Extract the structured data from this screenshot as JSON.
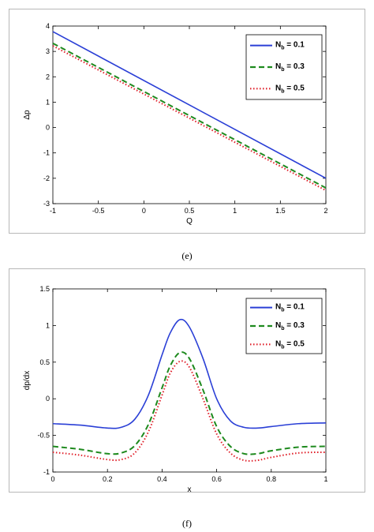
{
  "captions": {
    "e": "(e)",
    "f": "(f)"
  },
  "colors": {
    "blue": "#2a3fd6",
    "green": "#1e8a1e",
    "red": "#e0202a"
  },
  "chart_data": [
    {
      "id": "e",
      "type": "line",
      "xlabel": "Q",
      "ylabel": "Δp",
      "xlim": [
        -1,
        2
      ],
      "ylim": [
        -3,
        4
      ],
      "xticks": [
        -1,
        -0.5,
        0,
        0.5,
        1,
        1.5,
        2
      ],
      "xtick_labels": [
        "-1",
        "-0.5",
        "0",
        "0.5",
        "1",
        "1.5",
        "2"
      ],
      "yticks": [
        -3,
        -2,
        -1,
        0,
        1,
        2,
        3,
        4
      ],
      "ytick_labels": [
        "-3",
        "-2",
        "-1",
        "0",
        "1",
        "2",
        "3",
        "4"
      ],
      "grid": false,
      "legend_position": "top-right",
      "series": [
        {
          "name": "N",
          "sub": "b",
          "suffix": " = 0.1",
          "color": "#2a3fd6",
          "dash": "solid",
          "x": [
            -1,
            2
          ],
          "y": [
            3.78,
            -2.0
          ]
        },
        {
          "name": "N",
          "sub": "b",
          "suffix": " = 0.3",
          "color": "#1e8a1e",
          "dash": "dashed",
          "x": [
            -1,
            2
          ],
          "y": [
            3.32,
            -2.38
          ]
        },
        {
          "name": "N",
          "sub": "b",
          "suffix": " = 0.5",
          "color": "#e0202a",
          "dash": "dotted",
          "x": [
            -1,
            2
          ],
          "y": [
            3.22,
            -2.48
          ]
        }
      ]
    },
    {
      "id": "f",
      "type": "line",
      "xlabel": "x",
      "ylabel": "dp/dx",
      "xlim": [
        0,
        1
      ],
      "ylim": [
        -1,
        1.5
      ],
      "xticks": [
        0,
        0.2,
        0.4,
        0.6,
        0.8,
        1
      ],
      "xtick_labels": [
        "0",
        "0.2",
        "0.4",
        "0.6",
        "0.8",
        "1"
      ],
      "yticks": [
        -1,
        -0.5,
        0,
        0.5,
        1,
        1.5
      ],
      "ytick_labels": [
        "-1",
        "-0.5",
        "0",
        "0.5",
        "1",
        "1.5"
      ],
      "grid": false,
      "legend_position": "top-right",
      "series": [
        {
          "name": "N",
          "sub": "b",
          "suffix": " = 0.1",
          "color": "#2a3fd6",
          "dash": "solid",
          "x": [
            0,
            0.1,
            0.2,
            0.25,
            0.3,
            0.35,
            0.4,
            0.43,
            0.465,
            0.5,
            0.55,
            0.6,
            0.65,
            0.7,
            0.75,
            0.8,
            0.9,
            1.0
          ],
          "y": [
            -0.34,
            -0.36,
            -0.4,
            -0.39,
            -0.28,
            0.05,
            0.6,
            0.9,
            1.08,
            0.98,
            0.55,
            0.0,
            -0.3,
            -0.39,
            -0.4,
            -0.38,
            -0.34,
            -0.33
          ]
        },
        {
          "name": "N",
          "sub": "b",
          "suffix": " = 0.3",
          "color": "#1e8a1e",
          "dash": "dashed",
          "x": [
            0,
            0.1,
            0.2,
            0.25,
            0.3,
            0.35,
            0.4,
            0.43,
            0.465,
            0.5,
            0.55,
            0.6,
            0.65,
            0.7,
            0.75,
            0.8,
            0.9,
            1.0
          ],
          "y": [
            -0.65,
            -0.69,
            -0.75,
            -0.74,
            -0.64,
            -0.35,
            0.15,
            0.45,
            0.63,
            0.55,
            0.12,
            -0.38,
            -0.65,
            -0.75,
            -0.75,
            -0.71,
            -0.66,
            -0.65
          ]
        },
        {
          "name": "N",
          "sub": "b",
          "suffix": " = 0.5",
          "color": "#e0202a",
          "dash": "dotted",
          "x": [
            0,
            0.1,
            0.2,
            0.25,
            0.3,
            0.35,
            0.4,
            0.43,
            0.465,
            0.5,
            0.55,
            0.6,
            0.65,
            0.7,
            0.75,
            0.8,
            0.9,
            1.0
          ],
          "y": [
            -0.73,
            -0.77,
            -0.83,
            -0.83,
            -0.74,
            -0.45,
            0.05,
            0.35,
            0.51,
            0.43,
            0.0,
            -0.48,
            -0.74,
            -0.84,
            -0.84,
            -0.8,
            -0.74,
            -0.73
          ]
        }
      ]
    }
  ]
}
